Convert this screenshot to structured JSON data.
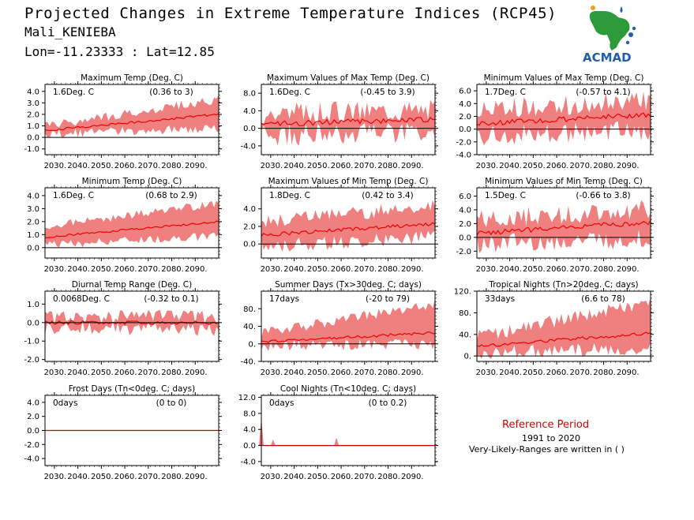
{
  "header": {
    "title": "Projected Changes in Extreme Temperature Indices (RCP45)",
    "location": "Mali_KENIEBA",
    "coords": "Lon=-11.23333 : Lat=12.85",
    "logo_text": "ACMAD"
  },
  "reference": {
    "title": "Reference Period",
    "years": "1991 to 2020",
    "note": "Very-Likely-Ranges are written in ( )"
  },
  "colors": {
    "band": "#f08080",
    "line": "#ee0000",
    "axis": "#000000",
    "reference_text": "#d40000",
    "logo_blue": "#1f5faa",
    "logo_green": "#2e9b3a",
    "logo_orange": "#f0a020"
  },
  "chart_data": [
    {
      "type": "line",
      "title": "Maximum Temp (Deg. C)",
      "mean_text": "1.6Deg. C",
      "range_text": "(0.36 to 3)",
      "x_ticks": [
        "2030.",
        "2040.",
        "2050.",
        "2060.",
        "2070.",
        "2080.",
        "2090."
      ],
      "y_ticks": [
        "4.0",
        "3.0",
        "2.0",
        "1.0",
        "0.0",
        "-1.0"
      ],
      "ylim": [
        -1.5,
        4.6
      ],
      "series": [
        {
          "start": [
            0.6,
            0.3,
            1.0
          ],
          "end": [
            2.0,
            0.8,
            3.3
          ],
          "noise": 0.25
        }
      ]
    },
    {
      "type": "line",
      "title": "Maximum Values of Max Temp (Deg. C)",
      "mean_text": "1.6Deg. C",
      "range_text": "(-0.45 to 3.9)",
      "x_ticks": [
        "2030.",
        "2040.",
        "2050.",
        "2060.",
        "2070.",
        "2080.",
        "2090."
      ],
      "y_ticks": [
        "8.0",
        "4.0",
        "0.0",
        "-4.0"
      ],
      "ylim": [
        -6,
        10
      ],
      "series": [
        {
          "start": [
            1.0,
            -1.5,
            3.5
          ],
          "end": [
            2.0,
            -1.0,
            4.5
          ],
          "noise": 1.6
        }
      ]
    },
    {
      "type": "line",
      "title": "Minimum Values of Max Temp (Deg. C)",
      "mean_text": "1.7Deg. C",
      "range_text": "(-0.57 to 4.1)",
      "x_ticks": [
        "2030.",
        "2040.",
        "2050.",
        "2060.",
        "2070.",
        "2080.",
        "2090."
      ],
      "y_ticks": [
        "6.0",
        "4.0",
        "2.0",
        "0.0",
        "-2.0",
        "-4.0"
      ],
      "ylim": [
        -4,
        7
      ],
      "series": [
        {
          "start": [
            0.8,
            -1.0,
            3.0
          ],
          "end": [
            2.3,
            -0.2,
            4.5
          ],
          "noise": 1.0
        }
      ]
    },
    {
      "type": "line",
      "title": "Minimum Temp (Deg. C)",
      "mean_text": "1.6Deg. C",
      "range_text": "(0.68 to 2.9)",
      "x_ticks": [
        "2030.",
        "2040.",
        "2050.",
        "2060.",
        "2070.",
        "2080.",
        "2090."
      ],
      "y_ticks": [
        "4.0",
        "3.0",
        "2.0",
        "1.0",
        "0.0"
      ],
      "ylim": [
        -0.8,
        4.6
      ],
      "series": [
        {
          "start": [
            0.8,
            0.2,
            1.6
          ],
          "end": [
            2.0,
            0.9,
            3.4
          ],
          "noise": 0.2
        }
      ]
    },
    {
      "type": "line",
      "title": "Maximum Values of Min Temp (Deg. C)",
      "mean_text": "1.8Deg. C",
      "range_text": "(0.42 to 3.4)",
      "x_ticks": [
        "2030.",
        "2040.",
        "2050.",
        "2060.",
        "2070.",
        "2080.",
        "2090."
      ],
      "y_ticks": [
        "4.0",
        "2.0",
        "0.0"
      ],
      "ylim": [
        -1.6,
        6.4
      ],
      "series": [
        {
          "start": [
            1.0,
            -0.3,
            2.6
          ],
          "end": [
            2.3,
            0.8,
            4.3
          ],
          "noise": 0.5
        }
      ]
    },
    {
      "type": "line",
      "title": "Minimum Values of Min Temp (Deg. C)",
      "mean_text": "1.5Deg. C",
      "range_text": "(-0.66 to 3.8)",
      "x_ticks": [
        "2030.",
        "2040.",
        "2050.",
        "2060.",
        "2070.",
        "2080.",
        "2090."
      ],
      "y_ticks": [
        "6.0",
        "4.0",
        "2.0",
        "0.0",
        "-2.0"
      ],
      "ylim": [
        -3,
        7.2
      ],
      "series": [
        {
          "start": [
            0.6,
            -1.0,
            2.5
          ],
          "end": [
            2.2,
            -0.2,
            4.2
          ],
          "noise": 0.9
        }
      ]
    },
    {
      "type": "line",
      "title": "Diurnal Temp Range (Deg. C)",
      "mean_text": "0.0068Deg. C",
      "range_text": "(-0.32 to 0.1)",
      "x_ticks": [
        "2030.",
        "2040.",
        "2050.",
        "2060.",
        "2070.",
        "2080.",
        "2090."
      ],
      "y_ticks": [
        "1.0",
        "0.0",
        "-1.0",
        "-2.0"
      ],
      "ylim": [
        -2.1,
        1.7
      ],
      "series": [
        {
          "start": [
            0.0,
            -0.3,
            0.3
          ],
          "end": [
            0.0,
            -0.35,
            0.3
          ],
          "noise": 0.25
        }
      ]
    },
    {
      "type": "line",
      "title": "Summer Days (Tx>30deg. C; days)",
      "mean_text": "17days",
      "range_text": "(-20 to 79)",
      "x_ticks": [
        "2030.",
        "2040.",
        "2050.",
        "2060.",
        "2070.",
        "2080.",
        "2090."
      ],
      "y_ticks": [
        "80.",
        "40.",
        "0.",
        "-40."
      ],
      "ylim": [
        -40,
        120
      ],
      "series": [
        {
          "start": [
            5,
            -5,
            25
          ],
          "end": [
            25,
            0,
            90
          ],
          "noise": 8
        }
      ]
    },
    {
      "type": "line",
      "title": "Tropical Nights (Tn>20deg. C; days)",
      "mean_text": "33days",
      "range_text": "(6.6 to 78)",
      "x_ticks": [
        "2030.",
        "2040.",
        "2050.",
        "2060.",
        "2070.",
        "2080.",
        "2090."
      ],
      "y_ticks": [
        "120.",
        "80.",
        "40.",
        "0."
      ],
      "ylim": [
        -10,
        120
      ],
      "series": [
        {
          "start": [
            18,
            5,
            35
          ],
          "end": [
            42,
            15,
            100
          ],
          "noise": 8
        }
      ]
    },
    {
      "type": "line",
      "title": "Frost Days (Tn<0deg. C; days)",
      "mean_text": "0days",
      "range_text": "(0 to 0)",
      "x_ticks": [
        "2030.",
        "2040.",
        "2050.",
        "2060.",
        "2070.",
        "2080.",
        "2090."
      ],
      "y_ticks": [
        "4.0",
        "2.0",
        "0.0",
        "-2.0",
        "-4.0"
      ],
      "ylim": [
        -5,
        5
      ],
      "series": [
        {
          "start": [
            0,
            0,
            0
          ],
          "end": [
            0,
            0,
            0
          ],
          "noise": 0
        }
      ]
    },
    {
      "type": "line",
      "title": "Cool Nights (Tn<10deg. C; days)",
      "mean_text": "0days",
      "range_text": "(0 to 0.2)",
      "x_ticks": [
        "2030.",
        "2040.",
        "2050.",
        "2060.",
        "2070.",
        "2080.",
        "2090."
      ],
      "y_ticks": [
        "12.0",
        "8.0",
        "4.0",
        "0.0",
        "-4.0"
      ],
      "ylim": [
        -5,
        12.5
      ],
      "series": [
        {
          "start": [
            0,
            0,
            0
          ],
          "end": [
            0,
            0,
            0
          ],
          "noise": 0
        }
      ],
      "spikes": [
        {
          "year": 2026,
          "value": 7.0
        },
        {
          "year": 2031,
          "value": 1.5
        },
        {
          "year": 2058,
          "value": 2.0
        }
      ]
    }
  ]
}
